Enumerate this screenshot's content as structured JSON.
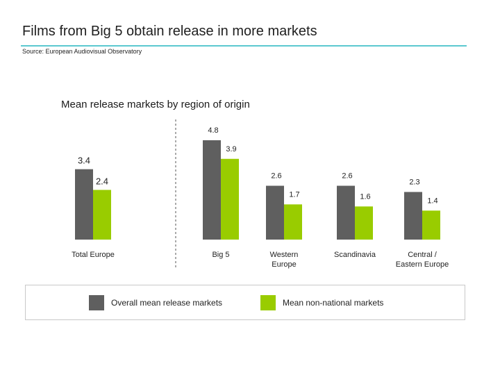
{
  "page": {
    "title": "Films from Big 5 obtain release in more markets",
    "source": "Source: European Audiovisual Observatory"
  },
  "colors": {
    "overall": "#5f5f5f",
    "non_national": "#99cc00",
    "accent_rule": "#5bc8d0"
  },
  "legend": [
    {
      "name": "Overall mean release markets",
      "color": "#5f5f5f"
    },
    {
      "name": "Mean non-national markets",
      "color": "#99cc00"
    }
  ],
  "chart_data": {
    "type": "bar",
    "title": "Mean release markets by region of origin",
    "categories": [
      "Total Europe",
      "Big 5",
      "Western\nEurope",
      "Scandinavia",
      "Central /\nEastern Europe"
    ],
    "series": [
      {
        "name": "Overall mean release markets",
        "values": [
          3.4,
          4.8,
          2.6,
          2.6,
          2.3
        ]
      },
      {
        "name": "Mean non-national markets",
        "values": [
          2.4,
          3.9,
          1.7,
          1.6,
          1.4
        ]
      }
    ],
    "value_labels": [
      [
        "3.4",
        "4.8",
        "2.6",
        "2.6",
        "2.3"
      ],
      [
        "2.4",
        "3.9",
        "1.7",
        "1.6",
        "1.4"
      ]
    ],
    "ylim": [
      0,
      5.2
    ],
    "grid": false,
    "legend_position": "bottom"
  }
}
